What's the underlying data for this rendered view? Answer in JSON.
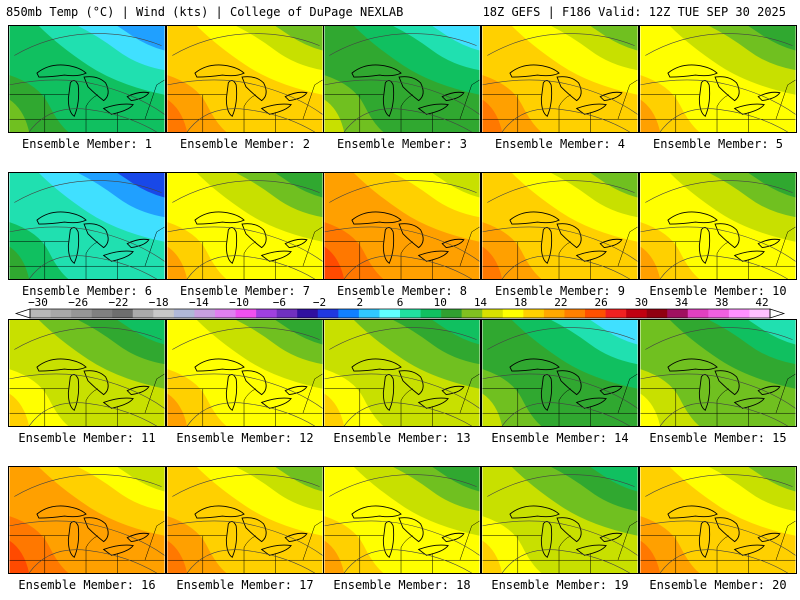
{
  "header": {
    "title_left": "850mb Temp (°C) | Wind (kts) | College of DuPage NEXLAB",
    "title_right": "18Z GEFS | F186 Valid: 12Z TUE SEP 30 2025"
  },
  "colorbar": {
    "ticks": [
      "−30",
      "−26",
      "−22",
      "−18",
      "−14",
      "−10",
      "−6",
      "−2",
      "2",
      "6",
      "10",
      "14",
      "18",
      "22",
      "26",
      "30",
      "34",
      "38",
      "42"
    ],
    "colors": [
      "#b8b8b8",
      "#a8a8a8",
      "#969696",
      "#808080",
      "#6e6e6e",
      "#aaaaaa",
      "#c8c8c8",
      "#b0b8d8",
      "#c8a0e0",
      "#e080f0",
      "#f050f0",
      "#a040e0",
      "#7030c0",
      "#3010a0",
      "#2038e0",
      "#1080ff",
      "#30c8ff",
      "#60ffff",
      "#20e0a0",
      "#10c060",
      "#30a030",
      "#80c020",
      "#d8e000",
      "#ffff00",
      "#ffd000",
      "#ffa800",
      "#ff8000",
      "#ff5000",
      "#f02020",
      "#c00010",
      "#900010",
      "#a01060",
      "#e040c0",
      "#f060e0",
      "#ff90ff",
      "#ffc0ff"
    ]
  },
  "members": [
    {
      "label": "Ensemble Member: 1",
      "temp": 6
    },
    {
      "label": "Ensemble Member: 2",
      "temp": 17
    },
    {
      "label": "Ensemble Member: 3",
      "temp": 8
    },
    {
      "label": "Ensemble Member: 4",
      "temp": 16
    },
    {
      "label": "Ensemble Member: 5",
      "temp": 15
    },
    {
      "label": "Ensemble Member: 6",
      "temp": 4
    },
    {
      "label": "Ensemble Member: 7",
      "temp": 14
    },
    {
      "label": "Ensemble Member: 8",
      "temp": 18
    },
    {
      "label": "Ensemble Member: 9",
      "temp": 17
    },
    {
      "label": "Ensemble Member: 10",
      "temp": 15
    },
    {
      "label": "Ensemble Member: 11",
      "temp": 12
    },
    {
      "label": "Ensemble Member: 12",
      "temp": 15
    },
    {
      "label": "Ensemble Member: 13",
      "temp": 13
    },
    {
      "label": "Ensemble Member: 14",
      "temp": 9
    },
    {
      "label": "Ensemble Member: 15",
      "temp": 10
    },
    {
      "label": "Ensemble Member: 16",
      "temp": 18
    },
    {
      "label": "Ensemble Member: 17",
      "temp": 16
    },
    {
      "label": "Ensemble Member: 18",
      "temp": 14
    },
    {
      "label": "Ensemble Member: 19",
      "temp": 12
    },
    {
      "label": "Ensemble Member: 20",
      "temp": 16
    }
  ]
}
